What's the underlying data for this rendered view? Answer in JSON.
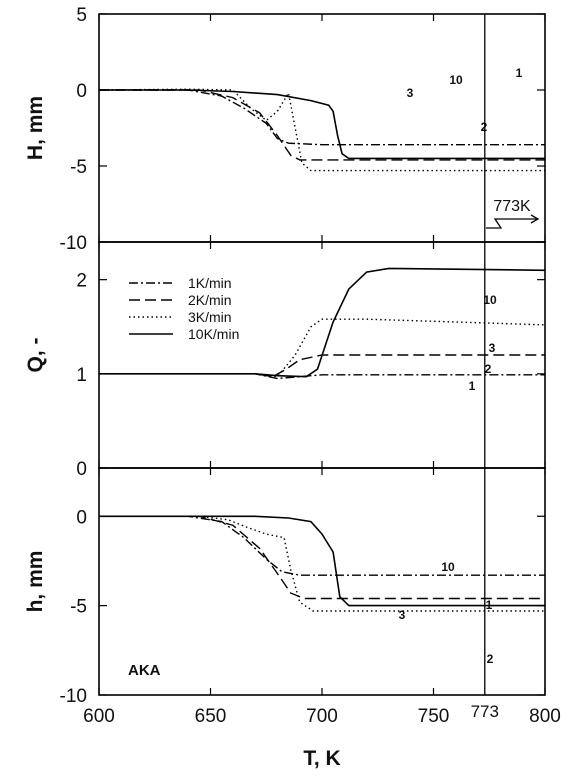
{
  "chart_data": {
    "type": "line",
    "xlabel": "T, K",
    "x_ticks": [
      "600",
      "650",
      "700",
      "750",
      "800"
    ],
    "extra_x_tick": "773",
    "xlim": [
      600,
      800
    ],
    "vertical_marker": {
      "x": 773,
      "label": "773K"
    },
    "legend": [
      "1K/min",
      "2K/min",
      "3K/min",
      "10K/min"
    ],
    "legend_placement": "top-left of middle panel",
    "panel_note": "AKA",
    "grid": false,
    "panels": [
      {
        "ylabel": "H, mm",
        "y_ticks": [
          "5",
          "0",
          "-5",
          "-10"
        ],
        "ylim": [
          -10,
          5
        ],
        "series": [
          {
            "name": "1K/min",
            "curve_label": "1",
            "style": "dashdot",
            "points": [
              [
                600,
                0
              ],
              [
                640,
                0
              ],
              [
                655,
                -0.4
              ],
              [
                665,
                -1.2
              ],
              [
                675,
                -2.2
              ],
              [
                680,
                -3.2
              ],
              [
                685,
                -3.5
              ],
              [
                700,
                -3.6
              ],
              [
                800,
                -3.6
              ]
            ]
          },
          {
            "name": "2K/min",
            "curve_label": "2",
            "style": "dashed",
            "points": [
              [
                600,
                0
              ],
              [
                645,
                0
              ],
              [
                660,
                -0.5
              ],
              [
                672,
                -1.5
              ],
              [
                680,
                -3
              ],
              [
                686,
                -4.3
              ],
              [
                690,
                -4.6
              ],
              [
                700,
                -4.6
              ],
              [
                800,
                -4.6
              ]
            ]
          },
          {
            "name": "3K/min",
            "curve_label": "3",
            "style": "dotted",
            "points": [
              [
                600,
                0
              ],
              [
                640,
                0.05
              ],
              [
                660,
                0
              ],
              [
                668,
                -1.2
              ],
              [
                675,
                -2
              ],
              [
                680,
                -1.4
              ],
              [
                685,
                -0.2
              ],
              [
                688,
                -2.5
              ],
              [
                691,
                -4.8
              ],
              [
                695,
                -5.3
              ],
              [
                800,
                -5.3
              ]
            ]
          },
          {
            "name": "10K/min",
            "curve_label": "10",
            "style": "solid",
            "points": [
              [
                600,
                0
              ],
              [
                640,
                0
              ],
              [
                660,
                -0.1
              ],
              [
                680,
                -0.3
              ],
              [
                695,
                -0.7
              ],
              [
                703,
                -1
              ],
              [
                705,
                -1.4
              ],
              [
                707,
                -3
              ],
              [
                709,
                -4.2
              ],
              [
                712,
                -4.5
              ],
              [
                800,
                -4.5
              ]
            ]
          }
        ]
      },
      {
        "ylabel": "Q, -",
        "y_ticks": [
          "2",
          "1",
          "0"
        ],
        "ylim": [
          0,
          2.4
        ],
        "series": [
          {
            "name": "1K/min",
            "curve_label": "1",
            "style": "dashdot",
            "points": [
              [
                600,
                1
              ],
              [
                670,
                1
              ],
              [
                680,
                0.95
              ],
              [
                690,
                0.97
              ],
              [
                700,
                0.99
              ],
              [
                800,
                0.99
              ]
            ]
          },
          {
            "name": "2K/min",
            "curve_label": "2",
            "style": "dashed",
            "points": [
              [
                600,
                1
              ],
              [
                670,
                1
              ],
              [
                678,
                0.97
              ],
              [
                684,
                1.05
              ],
              [
                690,
                1.15
              ],
              [
                700,
                1.2
              ],
              [
                800,
                1.2
              ]
            ]
          },
          {
            "name": "3K/min",
            "curve_label": "3",
            "style": "dotted",
            "points": [
              [
                600,
                1
              ],
              [
                670,
                1
              ],
              [
                680,
                0.97
              ],
              [
                688,
                1.2
              ],
              [
                695,
                1.5
              ],
              [
                700,
                1.58
              ],
              [
                720,
                1.58
              ],
              [
                760,
                1.55
              ],
              [
                800,
                1.52
              ]
            ]
          },
          {
            "name": "10K/min",
            "curve_label": "10",
            "style": "solid",
            "points": [
              [
                600,
                1
              ],
              [
                670,
                1
              ],
              [
                680,
                0.98
              ],
              [
                693,
                0.97
              ],
              [
                698,
                1.05
              ],
              [
                705,
                1.55
              ],
              [
                712,
                1.9
              ],
              [
                720,
                2.08
              ],
              [
                730,
                2.12
              ],
              [
                800,
                2.1
              ]
            ]
          }
        ]
      },
      {
        "ylabel": "h, mm",
        "y_ticks": [
          "0",
          "-5",
          "-10"
        ],
        "ylim": [
          -10,
          2.7
        ],
        "series": [
          {
            "name": "1K/min",
            "curve_label": "1",
            "style": "dashdot",
            "points": [
              [
                600,
                0
              ],
              [
                640,
                0
              ],
              [
                655,
                -0.3
              ],
              [
                665,
                -1.2
              ],
              [
                675,
                -2.4
              ],
              [
                682,
                -3.1
              ],
              [
                690,
                -3.3
              ],
              [
                700,
                -3.3
              ],
              [
                800,
                -3.3
              ]
            ]
          },
          {
            "name": "2K/min",
            "curve_label": "2",
            "style": "dashed",
            "points": [
              [
                600,
                0
              ],
              [
                645,
                0
              ],
              [
                660,
                -0.5
              ],
              [
                672,
                -1.8
              ],
              [
                680,
                -3.2
              ],
              [
                686,
                -4.3
              ],
              [
                692,
                -4.6
              ],
              [
                800,
                -4.6
              ]
            ]
          },
          {
            "name": "3K/min",
            "curve_label": "3",
            "style": "dotted",
            "points": [
              [
                600,
                0
              ],
              [
                645,
                0
              ],
              [
                658,
                -0.2
              ],
              [
                666,
                -0.6
              ],
              [
                675,
                -1
              ],
              [
                683,
                -1.2
              ],
              [
                686,
                -3
              ],
              [
                690,
                -4.8
              ],
              [
                696,
                -5.3
              ],
              [
                800,
                -5.3
              ]
            ]
          },
          {
            "name": "10K/min",
            "curve_label": "10",
            "style": "solid",
            "points": [
              [
                600,
                0
              ],
              [
                640,
                0
              ],
              [
                670,
                0
              ],
              [
                685,
                -0.1
              ],
              [
                695,
                -0.3
              ],
              [
                700,
                -1
              ],
              [
                705,
                -2
              ],
              [
                708,
                -4.5
              ],
              [
                712,
                -5
              ],
              [
                800,
                -5
              ]
            ]
          }
        ]
      }
    ]
  }
}
